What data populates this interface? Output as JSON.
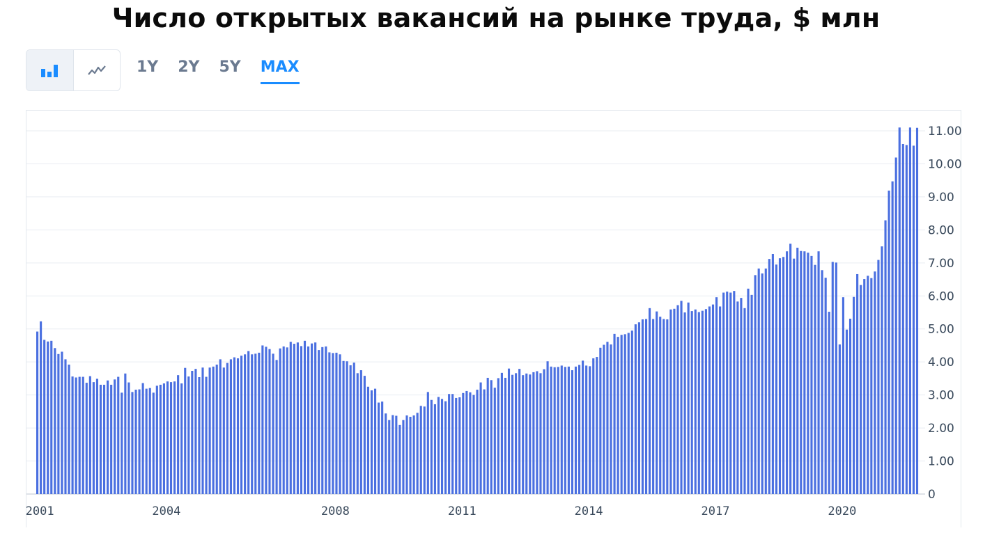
{
  "title": "Число открытых вакансий на рынке труда, $ млн",
  "toolbar": {
    "chart_types": [
      {
        "name": "bar-chart-icon",
        "active": true
      },
      {
        "name": "line-chart-icon",
        "active": false
      }
    ],
    "ranges": [
      {
        "label": "1Y",
        "active": false
      },
      {
        "label": "2Y",
        "active": false
      },
      {
        "label": "5Y",
        "active": false
      },
      {
        "label": "MAX",
        "active": true
      }
    ]
  },
  "colors": {
    "bar": "#4a6fe0",
    "accent": "#1a8cff",
    "grid": "#e9edf2"
  },
  "chart_data": {
    "type": "bar",
    "title": "Число открытых вакансий на рынке труда, $ млн",
    "xlabel": "",
    "ylabel": "",
    "ylim": [
      0,
      11
    ],
    "y_ticks": [
      "0",
      "1.00",
      "2.00",
      "3.00",
      "4.00",
      "5.00",
      "6.00",
      "7.00",
      "8.00",
      "9.00",
      "10.00",
      "11.00"
    ],
    "x_ticks": [
      {
        "label": "2001",
        "year": 2001
      },
      {
        "label": "2004",
        "year": 2004
      },
      {
        "label": "2008",
        "year": 2008
      },
      {
        "label": "2011",
        "year": 2011
      },
      {
        "label": "2014",
        "year": 2014
      },
      {
        "label": "2017",
        "year": 2017
      },
      {
        "label": "2020",
        "year": 2020
      }
    ],
    "grid": true,
    "y_axis_position": "right",
    "start_date": "2000-12",
    "frequency": "monthly",
    "values": [
      4.92,
      5.23,
      4.67,
      4.62,
      4.64,
      4.42,
      4.24,
      4.31,
      4.08,
      3.92,
      3.56,
      3.53,
      3.55,
      3.55,
      3.37,
      3.57,
      3.39,
      3.49,
      3.31,
      3.31,
      3.44,
      3.31,
      3.47,
      3.55,
      3.07,
      3.65,
      3.38,
      3.09,
      3.16,
      3.17,
      3.36,
      3.19,
      3.21,
      3.07,
      3.28,
      3.31,
      3.35,
      3.41,
      3.39,
      3.41,
      3.6,
      3.35,
      3.82,
      3.56,
      3.73,
      3.79,
      3.54,
      3.83,
      3.55,
      3.83,
      3.86,
      3.92,
      4.08,
      3.83,
      3.97,
      4.08,
      4.14,
      4.11,
      4.19,
      4.23,
      4.33,
      4.23,
      4.25,
      4.28,
      4.5,
      4.46,
      4.39,
      4.25,
      4.06,
      4.41,
      4.47,
      4.44,
      4.61,
      4.55,
      4.59,
      4.48,
      4.64,
      4.47,
      4.56,
      4.59,
      4.36,
      4.45,
      4.47,
      4.29,
      4.27,
      4.28,
      4.23,
      4.03,
      4.02,
      3.9,
      3.98,
      3.66,
      3.75,
      3.58,
      3.25,
      3.14,
      3.19,
      2.77,
      2.8,
      2.44,
      2.24,
      2.39,
      2.37,
      2.09,
      2.24,
      2.38,
      2.34,
      2.38,
      2.46,
      2.67,
      2.65,
      3.09,
      2.85,
      2.72,
      2.94,
      2.88,
      2.81,
      3.03,
      3.03,
      2.91,
      2.93,
      3.06,
      3.12,
      3.08,
      3.0,
      3.16,
      3.38,
      3.17,
      3.52,
      3.45,
      3.22,
      3.51,
      3.67,
      3.52,
      3.8,
      3.61,
      3.66,
      3.79,
      3.6,
      3.65,
      3.62,
      3.69,
      3.72,
      3.66,
      3.78,
      4.02,
      3.86,
      3.84,
      3.85,
      3.89,
      3.85,
      3.86,
      3.75,
      3.86,
      3.91,
      4.04,
      3.89,
      3.87,
      4.11,
      4.15,
      4.43,
      4.52,
      4.61,
      4.53,
      4.85,
      4.76,
      4.82,
      4.84,
      4.88,
      4.95,
      5.14,
      5.2,
      5.29,
      5.3,
      5.63,
      5.3,
      5.53,
      5.37,
      5.3,
      5.29,
      5.59,
      5.61,
      5.72,
      5.85,
      5.5,
      5.8,
      5.54,
      5.59,
      5.51,
      5.55,
      5.6,
      5.68,
      5.74,
      5.96,
      5.68,
      6.1,
      6.13,
      6.1,
      6.15,
      5.83,
      5.94,
      5.63,
      6.22,
      6.03,
      6.63,
      6.83,
      6.68,
      6.83,
      7.12,
      7.27,
      6.95,
      7.14,
      7.18,
      7.35,
      7.58,
      7.13,
      7.46,
      7.36,
      7.35,
      7.31,
      7.21,
      6.94,
      7.35,
      6.78,
      6.55,
      5.52,
      7.03,
      7.01,
      4.53,
      5.96,
      4.98,
      5.31,
      5.97,
      6.66,
      6.33,
      6.51,
      6.61,
      6.54,
      6.74,
      7.09,
      7.5,
      8.29,
      9.19,
      9.47,
      10.19,
      11.1,
      10.6,
      10.57,
      11.1,
      10.55,
      11.09
    ]
  }
}
